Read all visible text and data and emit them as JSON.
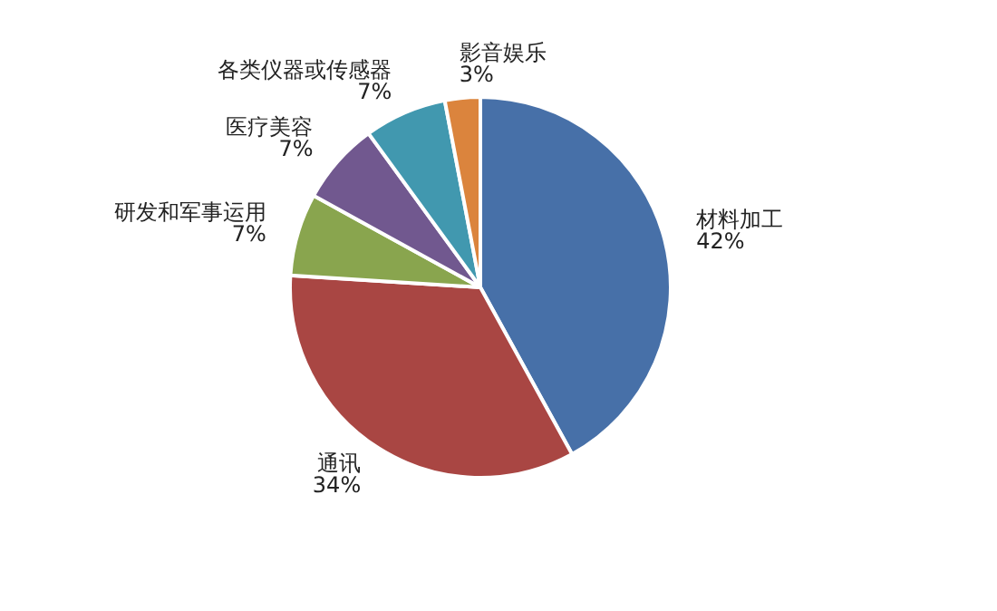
{
  "chart_data": {
    "type": "pie",
    "categories": [
      "材料加工",
      "通讯",
      "研发和军事运用",
      "医疗美容",
      "各类仪器或传感器",
      "影音娱乐"
    ],
    "values": [
      42,
      34,
      7,
      7,
      7,
      3
    ],
    "colors": [
      "#4770a8",
      "#a94643",
      "#89a54e",
      "#71588f",
      "#4198af",
      "#db843d"
    ],
    "value_labels": [
      "42%",
      "34%",
      "7%",
      "7%",
      "7%",
      "3%"
    ],
    "legend": false
  }
}
